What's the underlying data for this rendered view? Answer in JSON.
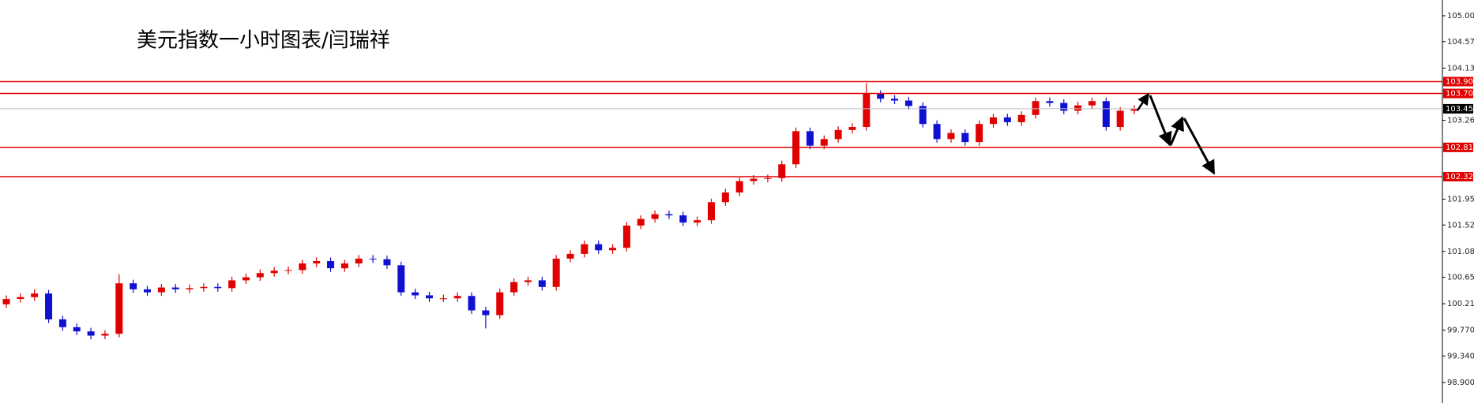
{
  "chart_data": {
    "type": "candlestick",
    "title": "美元指数一小时图表/闫瑞祥",
    "open": [
      100.2,
      100.29,
      100.32,
      100.38,
      99.95,
      99.82,
      99.75,
      99.68,
      99.71,
      100.55,
      100.45,
      100.4,
      100.48,
      100.45,
      100.47,
      100.49,
      100.47,
      100.6,
      100.65,
      100.72,
      100.76,
      100.77,
      100.88,
      100.92,
      100.8,
      100.88,
      100.96,
      100.95,
      100.85,
      100.4,
      100.35,
      100.3,
      100.3,
      100.34,
      100.1,
      100.02,
      100.4,
      100.57,
      100.6,
      100.49,
      100.96,
      101.04,
      101.2,
      101.1,
      101.14,
      101.51,
      101.62,
      101.7,
      101.68,
      101.56,
      101.6,
      101.9,
      102.06,
      102.25,
      102.29,
      102.3,
      102.53,
      103.08,
      102.84,
      102.95,
      103.1,
      103.15,
      103.7,
      103.62,
      103.59,
      103.5,
      103.2,
      102.95,
      103.05,
      102.9,
      103.2,
      103.31,
      103.23,
      103.35,
      103.58,
      103.55,
      103.42,
      103.51,
      103.58,
      103.15,
      103.42
    ],
    "close": [
      100.29,
      100.32,
      100.38,
      99.95,
      99.82,
      99.75,
      99.68,
      99.71,
      100.55,
      100.45,
      100.4,
      100.48,
      100.45,
      100.47,
      100.49,
      100.47,
      100.6,
      100.65,
      100.72,
      100.76,
      100.77,
      100.88,
      100.92,
      100.8,
      100.88,
      100.96,
      100.95,
      100.85,
      100.4,
      100.35,
      100.3,
      100.3,
      100.34,
      100.1,
      100.02,
      100.4,
      100.57,
      100.6,
      100.49,
      100.96,
      101.04,
      101.2,
      101.1,
      101.14,
      101.51,
      101.62,
      101.7,
      101.68,
      101.56,
      101.6,
      101.9,
      102.06,
      102.25,
      102.29,
      102.3,
      102.53,
      103.08,
      102.84,
      102.95,
      103.1,
      103.15,
      103.7,
      103.62,
      103.59,
      103.5,
      103.2,
      102.95,
      103.05,
      102.9,
      103.2,
      103.31,
      103.23,
      103.35,
      103.58,
      103.55,
      103.42,
      103.51,
      103.58,
      103.15,
      103.42,
      103.45
    ],
    "high": [
      100.35,
      100.38,
      100.45,
      100.44,
      100.01,
      99.88,
      99.81,
      99.77,
      100.7,
      100.61,
      100.51,
      100.54,
      100.54,
      100.53,
      100.55,
      100.55,
      100.66,
      100.71,
      100.78,
      100.82,
      100.83,
      100.94,
      100.98,
      100.98,
      100.94,
      101.02,
      101.02,
      101.01,
      100.91,
      100.46,
      100.41,
      100.36,
      100.4,
      100.4,
      100.16,
      100.46,
      100.63,
      100.66,
      100.66,
      101.02,
      101.1,
      101.26,
      101.26,
      101.2,
      101.57,
      101.68,
      101.76,
      101.76,
      101.74,
      101.66,
      101.96,
      102.12,
      102.31,
      102.35,
      102.36,
      102.59,
      103.14,
      103.14,
      103.01,
      103.16,
      103.21,
      103.88,
      103.76,
      103.68,
      103.65,
      103.56,
      103.26,
      103.11,
      103.11,
      103.26,
      103.37,
      103.37,
      103.41,
      103.64,
      103.64,
      103.61,
      103.57,
      103.64,
      103.64,
      103.48,
      103.51
    ],
    "low": [
      100.14,
      100.23,
      100.26,
      99.89,
      99.76,
      99.69,
      99.62,
      99.62,
      99.65,
      100.39,
      100.34,
      100.34,
      100.39,
      100.39,
      100.41,
      100.41,
      100.41,
      100.54,
      100.59,
      100.66,
      100.7,
      100.71,
      100.82,
      100.74,
      100.74,
      100.82,
      100.89,
      100.79,
      100.34,
      100.29,
      100.24,
      100.24,
      100.24,
      100.04,
      99.8,
      99.96,
      100.34,
      100.51,
      100.43,
      100.43,
      100.9,
      100.98,
      101.04,
      101.04,
      101.08,
      101.45,
      101.56,
      101.62,
      101.5,
      101.5,
      101.54,
      101.84,
      102.0,
      102.19,
      102.23,
      102.24,
      102.47,
      102.78,
      102.78,
      102.89,
      103.04,
      103.09,
      103.56,
      103.53,
      103.44,
      103.14,
      102.89,
      102.89,
      102.84,
      102.84,
      103.14,
      103.17,
      103.17,
      103.29,
      103.49,
      103.36,
      103.36,
      103.45,
      103.09,
      103.09,
      103.36
    ],
    "up_color": "#e00000",
    "down_color": "#1010d0",
    "ylim": [
      98.9,
      105
    ],
    "yticks": [
      {
        "value": 105,
        "label": "105.000"
      },
      {
        "value": 104.57,
        "label": "104.570"
      },
      {
        "value": 104.13,
        "label": "104.130"
      },
      {
        "value": 103.26,
        "label": "103.260"
      },
      {
        "value": 101.95,
        "label": "101.950"
      },
      {
        "value": 101.52,
        "label": "101.520"
      },
      {
        "value": 101.08,
        "label": "101.080"
      },
      {
        "value": 100.65,
        "label": "100.650"
      },
      {
        "value": 100.21,
        "label": "100.210"
      },
      {
        "value": 99.77,
        "label": "99.770"
      },
      {
        "value": 99.34,
        "label": "99.340"
      },
      {
        "value": 98.9,
        "label": "98.900"
      }
    ],
    "hlines": [
      103.905,
      103.708,
      102.811,
      102.324
    ],
    "hline_color": "#e00000",
    "current_price": 103.453
  }
}
